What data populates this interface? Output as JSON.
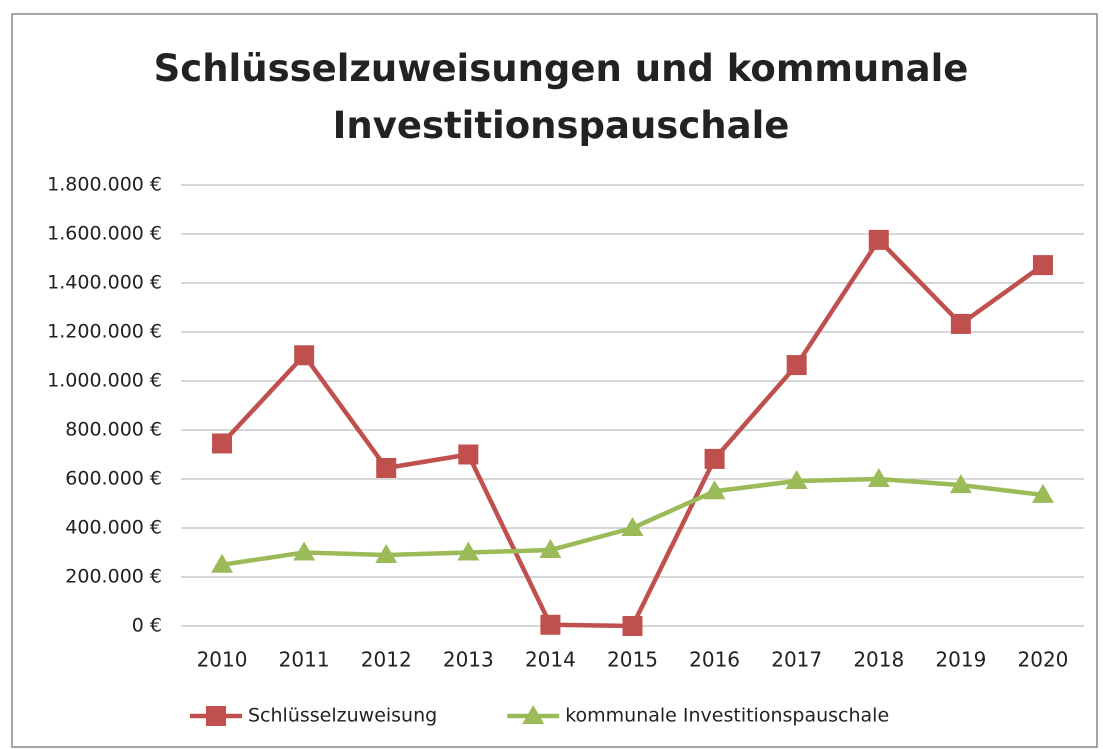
{
  "chart_data": {
    "type": "line",
    "title": "Schlüsselzuweisungen und kommunale Investitionspauschale",
    "categories": [
      "2010",
      "2011",
      "2012",
      "2013",
      "2014",
      "2015",
      "2016",
      "2017",
      "2018",
      "2019",
      "2020"
    ],
    "series": [
      {
        "name": "Schlüsselzuweisung",
        "color": "#c0504d",
        "marker": "square",
        "values": [
          745000,
          1105000,
          645000,
          700000,
          5000,
          0,
          682000,
          1065000,
          1576000,
          1233000,
          1473000
        ]
      },
      {
        "name": "kommunale Investitionspauschale",
        "color": "#9bbb59",
        "marker": "triangle",
        "values": [
          250000,
          300000,
          290000,
          300000,
          310000,
          400000,
          550000,
          592000,
          600000,
          575000,
          535000
        ]
      }
    ],
    "ylim": [
      0,
      1800000
    ],
    "yticks": [
      {
        "value": 0,
        "label": "0 €"
      },
      {
        "value": 200000,
        "label": "200.000 €"
      },
      {
        "value": 400000,
        "label": "400.000 €"
      },
      {
        "value": 600000,
        "label": "600.000 €"
      },
      {
        "value": 800000,
        "label": "800.000 €"
      },
      {
        "value": 1000000,
        "label": "1.000.000 €"
      },
      {
        "value": 1200000,
        "label": "1.200.000 €"
      },
      {
        "value": 1400000,
        "label": "1.400.000 €"
      },
      {
        "value": 1600000,
        "label": "1.600.000 €"
      },
      {
        "value": 1800000,
        "label": "1.800.000 €"
      }
    ],
    "grid": true,
    "legend": "bottom"
  }
}
